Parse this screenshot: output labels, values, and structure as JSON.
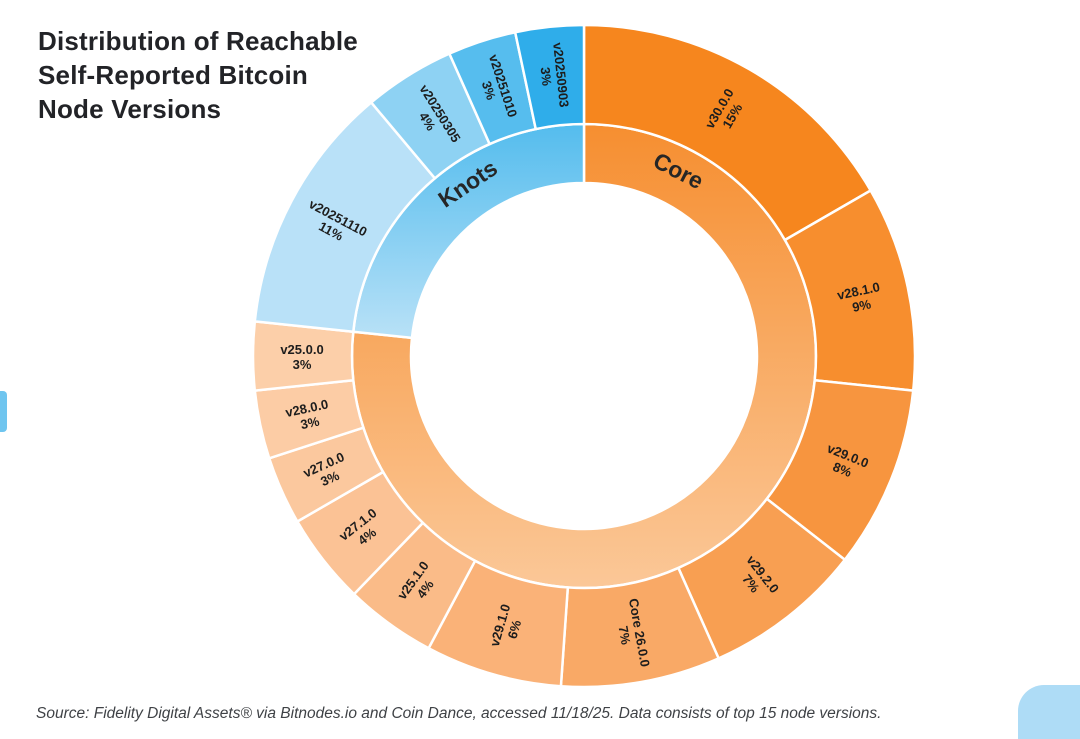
{
  "header": {
    "title": "Distribution of Reachable\nSelf-Reported Bitcoin\nNode Versions"
  },
  "footer": {
    "source": "Source: Fidelity Digital Assets® via Bitnodes.io and Coin Dance, accessed 11/18/25. Data consists of top 15 node versions."
  },
  "decor": {
    "edge_accent_color": "#6fc5ef",
    "corner_accent_color": "#aedcf6"
  },
  "chart_data": {
    "type": "pie",
    "variant": "two-ring sunburst donut",
    "direction": "clockwise",
    "start_angle_deg": 0,
    "legend_position": "none",
    "inner_ring": [
      {
        "label": "Core",
        "total_pct": 69,
        "label_angle_deg": 27,
        "color_top": "#f5821a",
        "color_bottom": "#fcd4ae"
      },
      {
        "label": "Knots",
        "total_pct": 21,
        "label_angle_deg": 326,
        "color_top": "#25abe9",
        "color_bottom": "#c3e5f8"
      }
    ],
    "segments": [
      {
        "group": "Core",
        "label": "v30.0.0",
        "pct": 15,
        "color": "#f6861e"
      },
      {
        "group": "Core",
        "label": "v28.1.0",
        "pct": 9,
        "color": "#f78e2e"
      },
      {
        "group": "Core",
        "label": "v29.0.0",
        "pct": 8,
        "color": "#f7953f"
      },
      {
        "group": "Core",
        "label": "v29.2.0",
        "pct": 7,
        "color": "#f89f52"
      },
      {
        "group": "Core",
        "label": "Core 26.0.0",
        "pct": 7,
        "color": "#f9a966"
      },
      {
        "group": "Core",
        "label": "v29.1.0",
        "pct": 6,
        "color": "#fab278"
      },
      {
        "group": "Core",
        "label": "v25.1.0",
        "pct": 4,
        "color": "#fabb88"
      },
      {
        "group": "Core",
        "label": "v27.1.0",
        "pct": 4,
        "color": "#fbc295"
      },
      {
        "group": "Core",
        "label": "v27.0.0",
        "pct": 3,
        "color": "#fbc89e"
      },
      {
        "group": "Core",
        "label": "v28.0.0",
        "pct": 3,
        "color": "#fccca5"
      },
      {
        "group": "Core",
        "label": "v25.0.0",
        "pct": 3,
        "color": "#fccfa9"
      },
      {
        "group": "Knots",
        "label": "v20251110",
        "pct": 11,
        "color": "#b9e1f8"
      },
      {
        "group": "Knots",
        "label": "v20250305",
        "pct": 4,
        "color": "#8ed2f3"
      },
      {
        "group": "Knots",
        "label": "v20251010",
        "pct": 3,
        "color": "#56bdee"
      },
      {
        "group": "Knots",
        "label": "v20250903",
        "pct": 3,
        "color": "#2fadea"
      }
    ],
    "label_text_color": "#1d1d1d",
    "separator_color": "#ffffff"
  }
}
